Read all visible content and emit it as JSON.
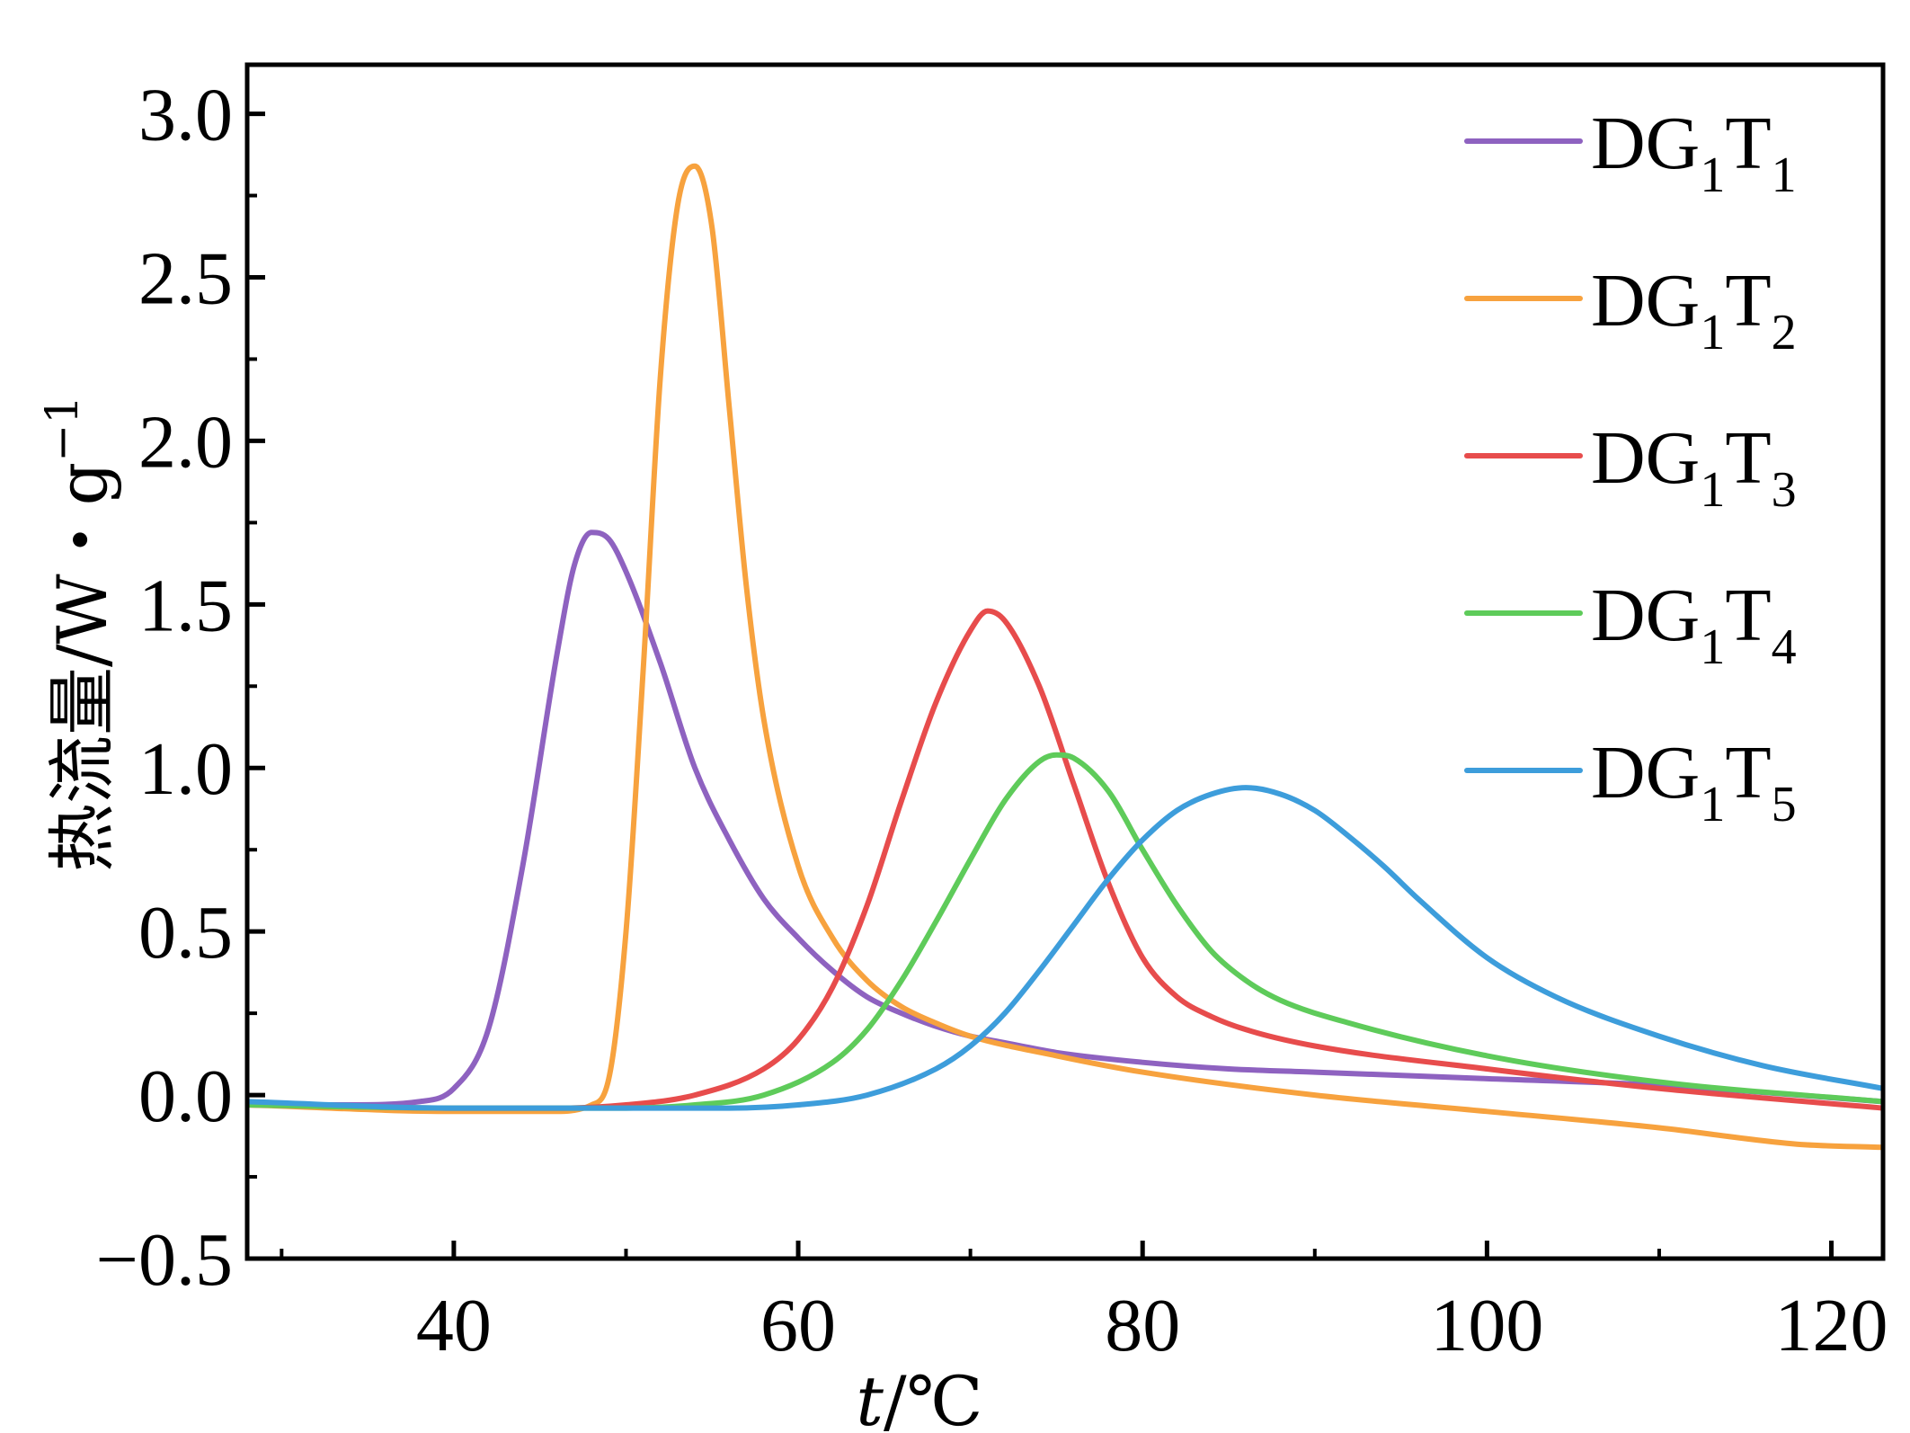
{
  "chart_data": {
    "type": "line",
    "xlabel_italic": "t",
    "xlabel_rest": "/℃",
    "ylabel_main": "热流量/W・g",
    "ylabel_sup": "−1",
    "xlim": [
      28,
      123
    ],
    "ylim": [
      -0.5,
      3.15
    ],
    "x_ticks": [
      40,
      60,
      80,
      100,
      120
    ],
    "x_tick_labels": [
      "40",
      "60",
      "80",
      "100",
      "120"
    ],
    "y_ticks": [
      -0.5,
      0.0,
      0.5,
      1.0,
      1.5,
      2.0,
      2.5,
      3.0
    ],
    "y_tick_labels": [
      "−0.5",
      "0.0",
      "0.5",
      "1.0",
      "1.5",
      "2.0",
      "2.5",
      "3.0"
    ],
    "grid": false,
    "legend_position": "top-right",
    "series": [
      {
        "name_base": "DG",
        "name_sub1": "1",
        "name_mid": "T",
        "name_sub2": "1",
        "color": "#8e62c0",
        "x": [
          28,
          34,
          38,
          40,
          42,
          44,
          46,
          47,
          48,
          49,
          50,
          52,
          54,
          56,
          58,
          60,
          62,
          64,
          66,
          68,
          70,
          72,
          75,
          80,
          85,
          90,
          100,
          110,
          123
        ],
        "y": [
          -0.03,
          -0.03,
          -0.02,
          0.02,
          0.2,
          0.7,
          1.35,
          1.62,
          1.72,
          1.7,
          1.6,
          1.32,
          1.0,
          0.78,
          0.6,
          0.48,
          0.38,
          0.3,
          0.25,
          0.21,
          0.18,
          0.16,
          0.13,
          0.1,
          0.08,
          0.07,
          0.05,
          0.03,
          -0.02
        ]
      },
      {
        "name_base": "DG",
        "name_sub1": "1",
        "name_mid": "T",
        "name_sub2": "2",
        "color": "#f7a23e",
        "x": [
          28,
          40,
          46,
          48,
          49,
          50,
          51,
          52,
          53,
          54,
          55,
          56,
          57,
          58,
          60,
          62,
          64,
          66,
          68,
          70,
          75,
          80,
          90,
          100,
          110,
          118,
          123
        ],
        "y": [
          -0.03,
          -0.05,
          -0.05,
          -0.03,
          0.05,
          0.5,
          1.3,
          2.2,
          2.72,
          2.84,
          2.65,
          2.1,
          1.55,
          1.15,
          0.7,
          0.48,
          0.35,
          0.27,
          0.22,
          0.18,
          0.12,
          0.07,
          0.0,
          -0.05,
          -0.1,
          -0.15,
          -0.16
        ]
      },
      {
        "name_base": "DG",
        "name_sub1": "1",
        "name_mid": "T",
        "name_sub2": "3",
        "color": "#e74c4c",
        "x": [
          28,
          40,
          46,
          50,
          54,
          58,
          60,
          62,
          64,
          66,
          68,
          70,
          71,
          72,
          74,
          76,
          78,
          80,
          82,
          84,
          86,
          90,
          100,
          110,
          123
        ],
        "y": [
          -0.03,
          -0.04,
          -0.04,
          -0.03,
          0.0,
          0.08,
          0.17,
          0.33,
          0.58,
          0.9,
          1.2,
          1.42,
          1.48,
          1.45,
          1.25,
          0.95,
          0.65,
          0.42,
          0.3,
          0.24,
          0.2,
          0.15,
          0.08,
          0.02,
          -0.04
        ]
      },
      {
        "name_base": "DG",
        "name_sub1": "1",
        "name_mid": "T",
        "name_sub2": "4",
        "color": "#5ecb5a",
        "x": [
          28,
          40,
          46,
          50,
          54,
          58,
          62,
          64,
          66,
          68,
          70,
          72,
          74,
          75,
          76,
          78,
          80,
          82,
          84,
          86,
          88,
          92,
          100,
          110,
          123
        ],
        "y": [
          -0.03,
          -0.04,
          -0.04,
          -0.04,
          -0.03,
          0.0,
          0.1,
          0.2,
          0.35,
          0.53,
          0.72,
          0.9,
          1.02,
          1.04,
          1.03,
          0.93,
          0.75,
          0.58,
          0.44,
          0.35,
          0.29,
          0.22,
          0.12,
          0.04,
          -0.02
        ]
      },
      {
        "name_base": "DG",
        "name_sub1": "1",
        "name_mid": "T",
        "name_sub2": "5",
        "color": "#3d9ddb",
        "x": [
          28,
          40,
          50,
          56,
          60,
          64,
          68,
          70,
          72,
          74,
          76,
          78,
          80,
          82,
          84,
          86,
          88,
          90,
          92,
          94,
          96,
          100,
          104,
          110,
          116,
          123
        ],
        "y": [
          -0.02,
          -0.04,
          -0.04,
          -0.04,
          -0.03,
          0.0,
          0.08,
          0.15,
          0.25,
          0.38,
          0.52,
          0.66,
          0.78,
          0.87,
          0.92,
          0.94,
          0.92,
          0.87,
          0.79,
          0.7,
          0.6,
          0.42,
          0.3,
          0.18,
          0.09,
          0.02
        ]
      }
    ]
  }
}
